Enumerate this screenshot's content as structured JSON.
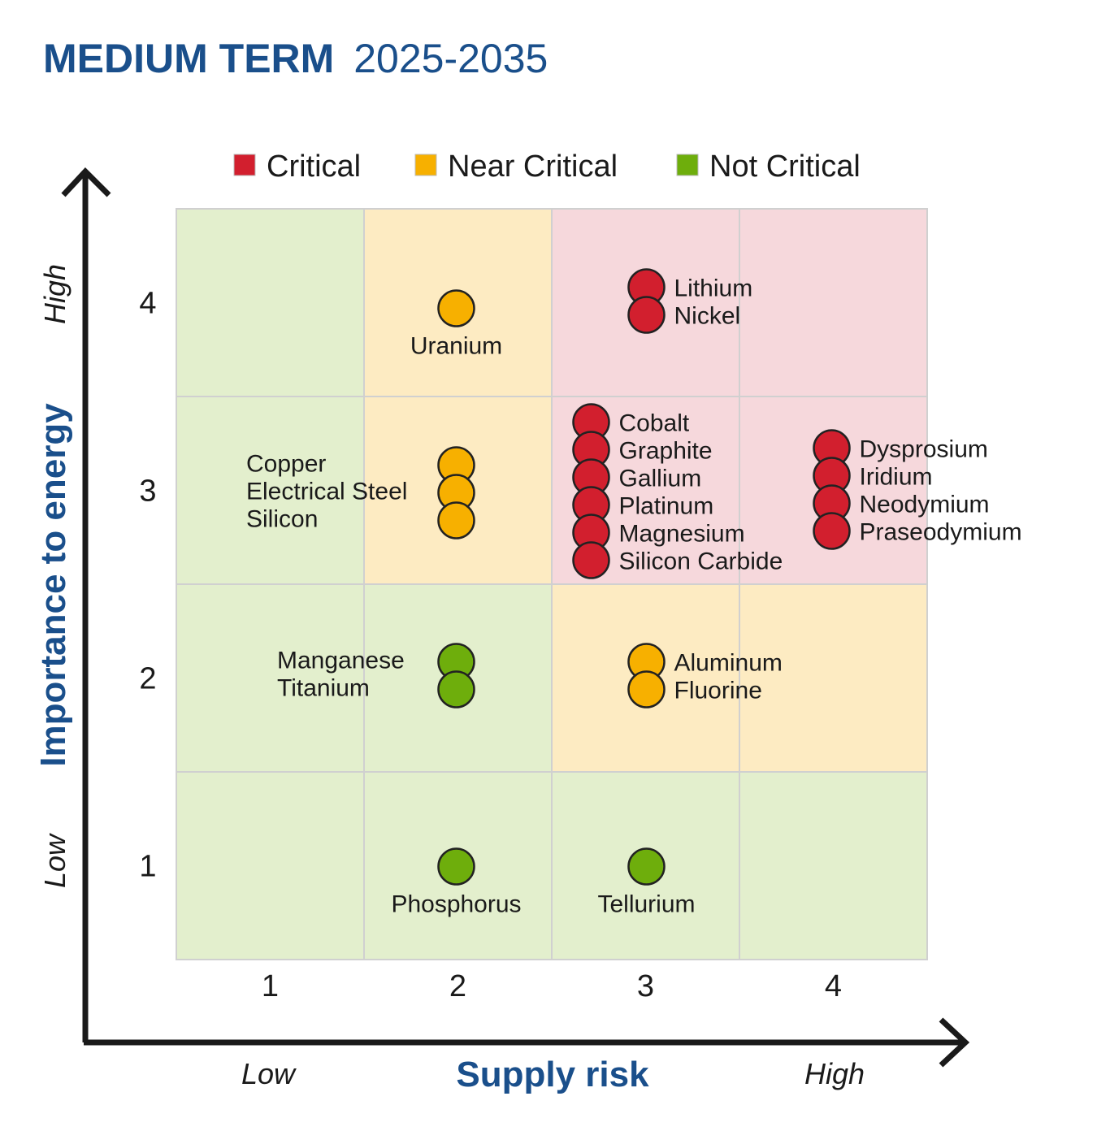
{
  "title": {
    "bold": "MEDIUM TERM",
    "regular": "2025-2035"
  },
  "colors": {
    "Critical": "#d21f2e",
    "Near Critical": "#f7b000",
    "Not Critical": "#6eae0c",
    "title": "#1a4f8b",
    "bg_critical": "#f6d8dc",
    "bg_near": "#fdebc2",
    "bg_not": "#e3efcd"
  },
  "chart_data": {
    "type": "scatter",
    "title": "MEDIUM TERM 2025-2035",
    "xlabel": "Supply risk",
    "ylabel": "Importance to energy",
    "x_low_label": "Low",
    "x_high_label": "High",
    "y_low_label": "Low",
    "y_high_label": "High",
    "xlim": [
      0.5,
      4.5
    ],
    "ylim": [
      0.5,
      4.5
    ],
    "xticks": [
      "1",
      "2",
      "3",
      "4"
    ],
    "yticks": [
      "1",
      "2",
      "3",
      "4"
    ],
    "grid": true,
    "legend": {
      "placement": "top",
      "entries": [
        "Critical",
        "Near Critical",
        "Not Critical"
      ]
    },
    "zones": [
      [
        "Not Critical",
        "Near Critical",
        "Critical",
        "Critical"
      ],
      [
        "Not Critical",
        "Near Critical",
        "Critical",
        "Critical"
      ],
      [
        "Not Critical",
        "Not Critical",
        "Near Critical",
        "Near Critical"
      ],
      [
        "Not Critical",
        "Not Critical",
        "Not Critical",
        "Not Critical"
      ]
    ],
    "groups": [
      {
        "x": 2,
        "y": 4,
        "category": "Near Critical",
        "items": [
          "Uranium"
        ]
      },
      {
        "x": 3,
        "y": 4,
        "category": "Critical",
        "items": [
          "Lithium",
          "Nickel"
        ]
      },
      {
        "x": 2,
        "y": 3,
        "category": "Near Critical",
        "items": [
          "Copper",
          "Electrical Steel",
          "Silicon"
        ]
      },
      {
        "x": 3,
        "y": 3,
        "category": "Critical",
        "items": [
          "Cobalt",
          "Graphite",
          "Gallium",
          "Platinum",
          "Magnesium",
          "Silicon Carbide"
        ]
      },
      {
        "x": 4,
        "y": 3,
        "category": "Critical",
        "items": [
          "Dysprosium",
          "Iridium",
          "Neodymium",
          "Praseodymium"
        ]
      },
      {
        "x": 2,
        "y": 2,
        "category": "Not Critical",
        "items": [
          "Manganese",
          "Titanium"
        ]
      },
      {
        "x": 3,
        "y": 2,
        "category": "Near Critical",
        "items": [
          "Aluminum",
          "Fluorine"
        ]
      },
      {
        "x": 2,
        "y": 1,
        "category": "Not Critical",
        "items": [
          "Phosphorus"
        ]
      },
      {
        "x": 3,
        "y": 1,
        "category": "Not Critical",
        "items": [
          "Tellurium"
        ]
      }
    ]
  }
}
